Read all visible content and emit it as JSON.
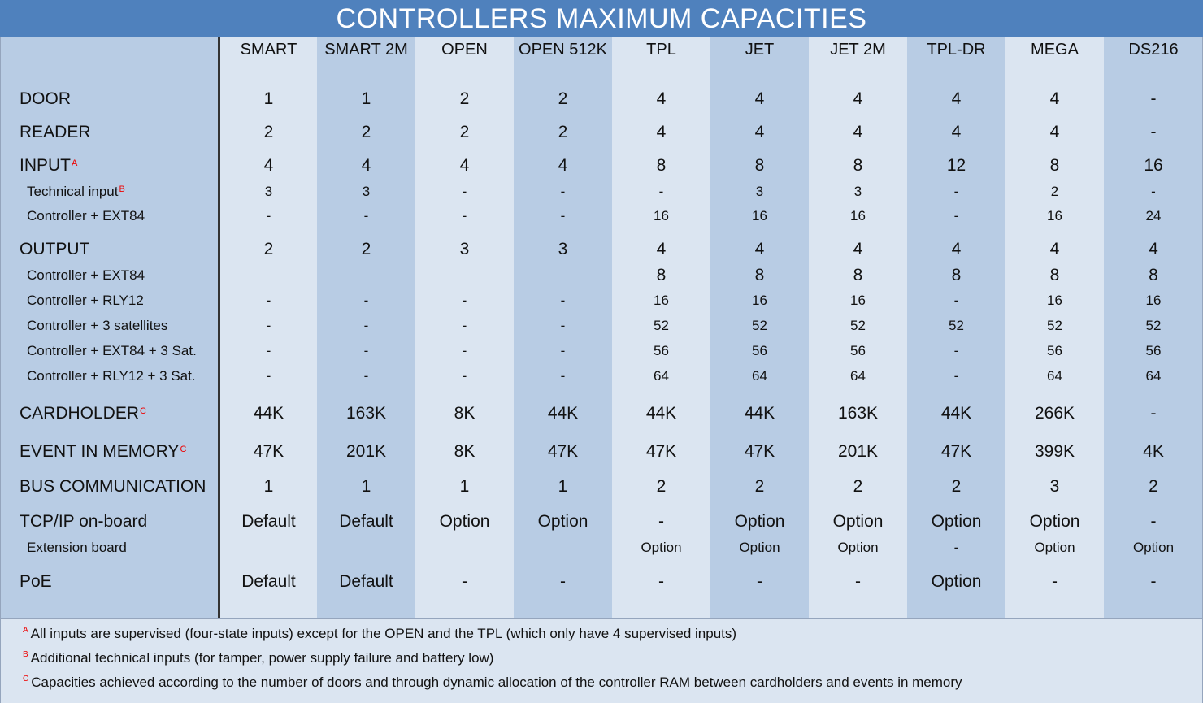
{
  "title": "CONTROLLERS MAXIMUM CAPACITIES",
  "columns": [
    "SMART",
    "SMART 2M",
    "OPEN",
    "OPEN 512K",
    "TPL",
    "JET",
    "JET 2M",
    "TPL-DR",
    "MEGA",
    "DS216"
  ],
  "rows": [
    {
      "label": "DOOR",
      "footnote": "",
      "sub": false,
      "values": [
        "1",
        "1",
        "2",
        "2",
        "4",
        "4",
        "4",
        "4",
        "4",
        "-"
      ]
    },
    {
      "label": "READER",
      "footnote": "",
      "sub": false,
      "values": [
        "2",
        "2",
        "2",
        "2",
        "4",
        "4",
        "4",
        "4",
        "4",
        "-"
      ]
    },
    {
      "label": "INPUT",
      "footnote": "A",
      "sub": false,
      "values": [
        "4",
        "4",
        "4",
        "4",
        "8",
        "8",
        "8",
        "12",
        "8",
        "16"
      ]
    },
    {
      "label": "Technical input",
      "footnote": "B",
      "sub": true,
      "values": [
        "3",
        "3",
        "-",
        "-",
        "-",
        "3",
        "3",
        "-",
        "2",
        "-"
      ]
    },
    {
      "label": "Controller + EXT84",
      "footnote": "",
      "sub": true,
      "values": [
        "-",
        "-",
        "-",
        "-",
        "16",
        "16",
        "16",
        "-",
        "16",
        "24"
      ]
    },
    {
      "label": "OUTPUT",
      "footnote": "",
      "sub": false,
      "values": [
        "2",
        "2",
        "3",
        "3",
        "4",
        "4",
        "4",
        "4",
        "4",
        "4"
      ]
    },
    {
      "label": "Controller + EXT84",
      "footnote": "",
      "sub": true,
      "big": true,
      "values": [
        "",
        "",
        "",
        "",
        "8",
        "8",
        "8",
        "8",
        "8",
        "8"
      ]
    },
    {
      "label": "Controller + RLY12",
      "footnote": "",
      "sub": true,
      "values": [
        "-",
        "-",
        "-",
        "-",
        "16",
        "16",
        "16",
        "-",
        "16",
        "16"
      ]
    },
    {
      "label": "Controller + 3 satellites",
      "footnote": "",
      "sub": true,
      "values": [
        "-",
        "-",
        "-",
        "-",
        "52",
        "52",
        "52",
        "52",
        "52",
        "52"
      ]
    },
    {
      "label": "Controller + EXT84 + 3 Sat.",
      "footnote": "",
      "sub": true,
      "values": [
        "-",
        "-",
        "-",
        "-",
        "56",
        "56",
        "56",
        "-",
        "56",
        "56"
      ]
    },
    {
      "label": "Controller + RLY12 + 3 Sat.",
      "footnote": "",
      "sub": true,
      "values": [
        "-",
        "-",
        "-",
        "-",
        "64",
        "64",
        "64",
        "-",
        "64",
        "64"
      ]
    },
    {
      "label": "CARDHOLDER",
      "footnote": "C",
      "sub": false,
      "values": [
        "44K",
        "163K",
        "8K",
        "44K",
        "44K",
        "44K",
        "163K",
        "44K",
        "266K",
        "-"
      ]
    },
    {
      "label": "EVENT IN MEMORY",
      "footnote": "C",
      "sub": false,
      "values": [
        "47K",
        "201K",
        "8K",
        "47K",
        "47K",
        "47K",
        "201K",
        "47K",
        "399K",
        "4K"
      ]
    },
    {
      "label": "BUS COMMUNICATION",
      "footnote": "",
      "sub": false,
      "values": [
        "1",
        "1",
        "1",
        "1",
        "2",
        "2",
        "2",
        "2",
        "3",
        "2"
      ]
    },
    {
      "label": "TCP/IP on-board",
      "footnote": "",
      "sub": false,
      "values": [
        "Default",
        "Default",
        "Option",
        "Option",
        "-",
        "Option",
        "Option",
        "Option",
        "Option",
        "-"
      ]
    },
    {
      "label": "Extension board",
      "footnote": "",
      "sub": true,
      "values": [
        "",
        "",
        "",
        "",
        "Option",
        "Option",
        "Option",
        "-",
        "Option",
        "Option"
      ]
    },
    {
      "label": "PoE",
      "footnote": "",
      "sub": false,
      "values": [
        "Default",
        "Default",
        "-",
        "-",
        "-",
        "-",
        "-",
        "Option",
        "-",
        "-"
      ]
    }
  ],
  "footnotes": [
    {
      "mark": "A",
      "text": "All inputs are supervised (four-state inputs) except for the OPEN and the TPL (which only have 4 supervised inputs)"
    },
    {
      "mark": "B",
      "text": "Additional technical inputs (for tamper, power supply failure and battery low)"
    },
    {
      "mark": "C",
      "text": "Capacities achieved according to the number of doors and through dynamic allocation of the controller RAM between cardholders and events in memory"
    }
  ],
  "colors": {
    "title_bg": "#4f81bd",
    "light": "#dbe5f1",
    "dark": "#b8cce4",
    "footnote_mark": "#e00000"
  }
}
